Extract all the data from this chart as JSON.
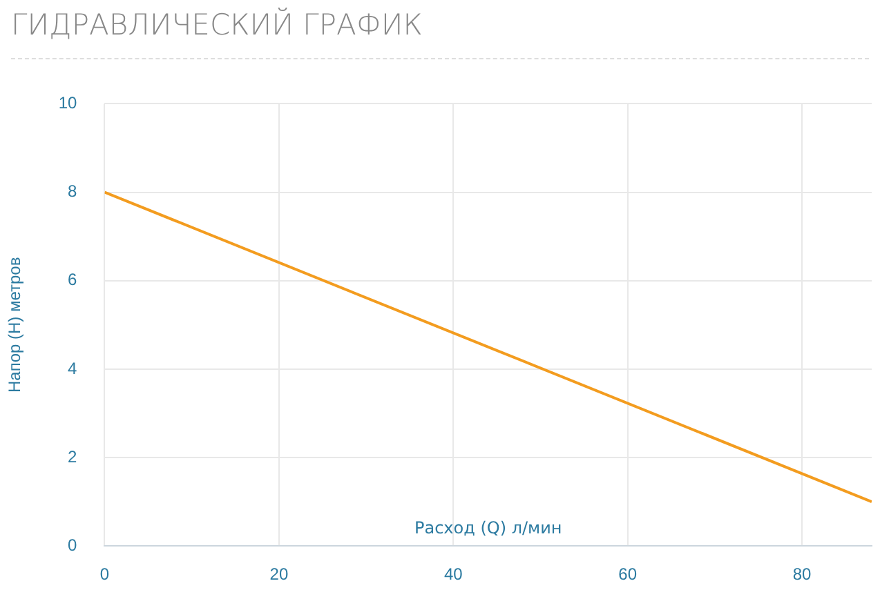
{
  "chart_data": {
    "type": "line",
    "title": "ГИДРАВЛИЧЕСКИЙ ГРАФИК",
    "xlabel": "Расход (Q) л/мин",
    "ylabel": "Напор (H) метров",
    "x": [
      0,
      88
    ],
    "xlim": [
      0,
      88
    ],
    "xticks": [
      0,
      20,
      40,
      60,
      80
    ],
    "ylim": [
      0,
      10
    ],
    "yticks": [
      0,
      2,
      4,
      6,
      8,
      10
    ],
    "grid": true,
    "series": [
      {
        "color": "#f39c1f",
        "values": [
          8,
          1
        ]
      }
    ]
  }
}
